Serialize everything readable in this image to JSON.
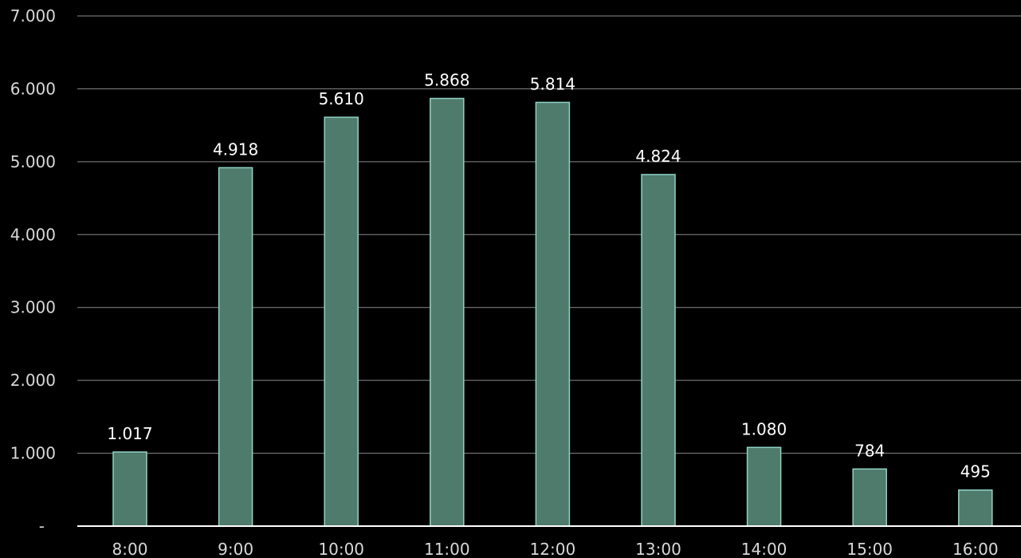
{
  "chart_data": {
    "type": "bar",
    "categories": [
      "8:00",
      "9:00",
      "10:00",
      "11:00",
      "12:00",
      "13:00",
      "14:00",
      "15:00",
      "16:00"
    ],
    "values": [
      1017,
      4918,
      5610,
      5868,
      5814,
      4824,
      1080,
      784,
      495
    ],
    "data_labels": [
      "1.017",
      "4.918",
      "5.610",
      "5.868",
      "5.814",
      "4.824",
      "1.080",
      "784",
      "495"
    ],
    "y_ticks": [
      0,
      1000,
      2000,
      3000,
      4000,
      5000,
      6000,
      7000
    ],
    "y_tick_labels": [
      "-",
      "1.000",
      "2.000",
      "3.000",
      "4.000",
      "5.000",
      "6.000",
      "7.000"
    ],
    "ylim": [
      0,
      7000
    ],
    "grid": true,
    "colors": {
      "background": "#000000",
      "bar_fill": "#4f7b6c",
      "bar_stroke": "#8fd3c4",
      "gridline": "#8a8a8a",
      "baseline": "#ffffff",
      "tick_text": "#d8d8d8",
      "label_text": "#ffffff"
    }
  }
}
